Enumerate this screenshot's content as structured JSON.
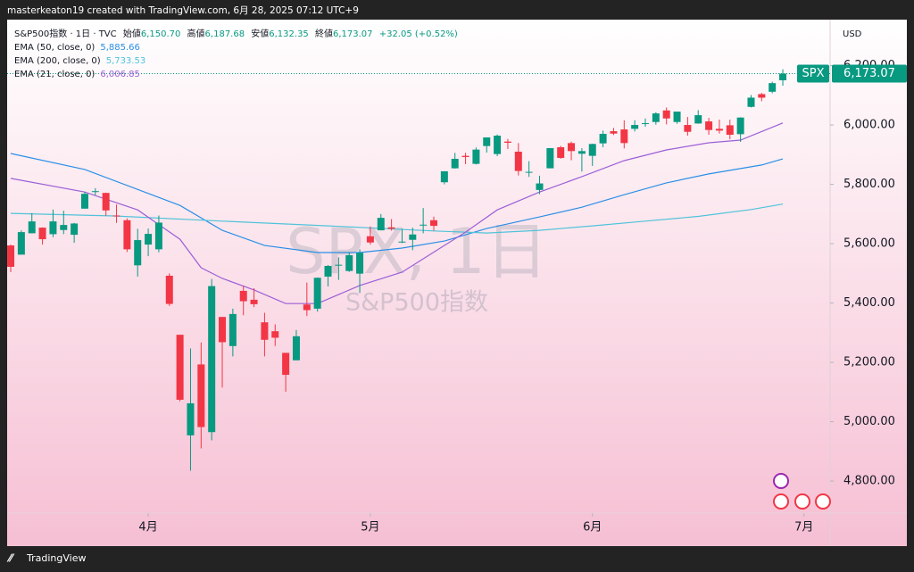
{
  "attribution": "masterkeaton19 created with TradingView.com, 6月 28, 2025 07:12 UTC+9",
  "brand": "TradingView",
  "chart_data": {
    "type": "candlestick",
    "symbol_line": "S&P500指数 · 1日 · TVC",
    "header": [
      {
        "label": "始値",
        "value": "6,150.70"
      },
      {
        "label": "高値",
        "value": "6,187.68"
      },
      {
        "label": "安値",
        "value": "6,132.35"
      },
      {
        "label": "終値",
        "value": "6,173.07"
      }
    ],
    "change": "+32.05 (+0.52%)",
    "watermark": "SPX, 1日",
    "watermark_sub": "S&P500指数",
    "currency": "USD",
    "symbol": "SPX",
    "last_price": {
      "value": 6173.07,
      "label": "6,173.07"
    },
    "up_color": "#089981",
    "down_color": "#f23645",
    "open": [
      5594,
      5563,
      5635,
      5654,
      5632,
      5646,
      5630,
      5718,
      5775,
      5771,
      5695,
      5679,
      5527,
      5597,
      5581,
      5492,
      5293,
      4954,
      5193,
      4965,
      5353,
      5255,
      5441,
      5411,
      5335,
      5305,
      5232,
      5207,
      5395,
      5381,
      5489,
      5529,
      5508,
      5499,
      5625,
      5645,
      5655,
      5606,
      5613,
      5663,
      5679,
      5807,
      5854,
      5896,
      5869,
      5929,
      5902,
      5944,
      5910,
      5841,
      5781,
      5854,
      5925,
      5939,
      5903,
      5896,
      5938,
      5979,
      5985,
      5987,
      6005,
      6010,
      6049,
      6010,
      6000,
      6005,
      6012,
      5987,
      5999,
      5969,
      6061,
      6104,
      6112,
      6150.7
    ],
    "high": [
      5597,
      5645,
      5703,
      5655,
      5715,
      5711,
      5670,
      5775,
      5787,
      5772,
      5732,
      5685,
      5650,
      5651,
      5695,
      5500,
      5293,
      5247,
      5267,
      5481,
      5353,
      5381,
      5459,
      5450,
      5367,
      5328,
      5232,
      5309,
      5469,
      5486,
      5528,
      5554,
      5571,
      5581,
      5658,
      5700,
      5683,
      5650,
      5654,
      5720,
      5691,
      5844,
      5906,
      5906,
      5924,
      5958,
      5968,
      5953,
      5939,
      5878,
      5829,
      5922,
      5930,
      5944,
      5922,
      5937,
      5981,
      5990,
      6016,
      6016,
      6022,
      6043,
      6059,
      6045,
      6027,
      6050,
      6024,
      6018,
      6018,
      6026,
      6101,
      6108,
      6146,
      6187.68
    ],
    "low": [
      5504,
      5563,
      5635,
      5597,
      5622,
      5632,
      5603,
      5718,
      5764,
      5694,
      5670,
      5572,
      5489,
      5558,
      5571,
      5390,
      5069,
      4835,
      4910,
      4937,
      5115,
      5220,
      5359,
      5386,
      5220,
      5255,
      5101,
      5207,
      5356,
      5371,
      5456,
      5478,
      5505,
      5434,
      5597,
      5645,
      5644,
      5602,
      5578,
      5635,
      5644,
      5800,
      5853,
      5868,
      5867,
      5907,
      5895,
      5919,
      5830,
      5825,
      5767,
      5854,
      5886,
      5881,
      5843,
      5862,
      5925,
      5966,
      5921,
      5978,
      5994,
      6001,
      6002,
      6004,
      5964,
      6004,
      5967,
      5971,
      5952,
      5943,
      6059,
      6080,
      6107,
      6132.35
    ],
    "close": [
      5522,
      5639,
      5675,
      5615,
      5675,
      5663,
      5668,
      5768,
      5777,
      5712,
      5693,
      5581,
      5612,
      5633,
      5671,
      5397,
      5074,
      5062,
      4982,
      5457,
      5268,
      5363,
      5406,
      5396,
      5276,
      5283,
      5158,
      5288,
      5376,
      5485,
      5525,
      5529,
      5561,
      5569,
      5604,
      5687,
      5650,
      5607,
      5631,
      5664,
      5660,
      5844,
      5886,
      5892,
      5917,
      5958,
      5964,
      5940,
      5845,
      5842,
      5803,
      5922,
      5889,
      5912,
      5912,
      5936,
      5970,
      5971,
      5939,
      6000,
      6006,
      6039,
      6022,
      6045,
      5977,
      6033,
      5983,
      5981,
      5967,
      6025,
      6092,
      6092,
      6141,
      6173.07
    ],
    "xlim": [
      -0.34,
      77.47
    ],
    "xticks": [
      {
        "value": 13,
        "label": "4月"
      },
      {
        "value": 34,
        "label": "5月"
      },
      {
        "value": 55,
        "label": "6月"
      },
      {
        "value": 75,
        "label": "7月"
      }
    ],
    "ylim": [
      4692,
      6355
    ],
    "yticks": [
      {
        "value": 4800,
        "label": "4,800.00"
      },
      {
        "value": 5000,
        "label": "5,000.00"
      },
      {
        "value": 5200,
        "label": "5,200.00"
      },
      {
        "value": 5400,
        "label": "5,400.00"
      },
      {
        "value": 5600,
        "label": "5,600.00"
      },
      {
        "value": 5800,
        "label": "5,800.00"
      },
      {
        "value": 6000,
        "label": "6,000.00"
      },
      {
        "value": 6200,
        "label": "6,200.00"
      }
    ],
    "series": [
      {
        "name": "EMA (50, close, 0)",
        "color": "#2b8fe6",
        "x": [
          0,
          7,
          16,
          20,
          24,
          29,
          33,
          37,
          41,
          45,
          50,
          54,
          58,
          62,
          66,
          71,
          73
        ],
        "values": [
          5904,
          5850,
          5729,
          5645,
          5594,
          5570,
          5570,
          5585,
          5609,
          5651,
          5690,
          5723,
          5765,
          5805,
          5835,
          5865,
          5885.66
        ],
        "value_labels": [
          null,
          null,
          null,
          null,
          null,
          null,
          null,
          null,
          null,
          null,
          null,
          null,
          null,
          null,
          null,
          null,
          "5,885.66"
        ]
      },
      {
        "name": "EMA (200, close, 0)",
        "color": "#4fc3d9",
        "x": [
          0,
          10,
          20,
          30,
          40,
          45,
          50,
          55,
          60,
          65,
          70,
          73
        ],
        "values": [
          5702,
          5693,
          5676,
          5660,
          5643,
          5636,
          5645,
          5660,
          5676,
          5692,
          5715,
          5733.53
        ],
        "value_labels": [
          null,
          null,
          null,
          null,
          null,
          null,
          null,
          null,
          null,
          null,
          null,
          "5,733.53"
        ]
      },
      {
        "name": "EMA (21, close, 0)",
        "color": "#9c5fd6",
        "x": [
          0,
          7,
          12,
          16,
          18,
          20,
          23,
          26,
          29,
          33,
          37,
          39,
          43,
          46,
          50,
          54,
          58,
          62,
          66,
          69,
          73
        ],
        "values": [
          5820,
          5774,
          5714,
          5615,
          5519,
          5483,
          5444,
          5398,
          5398,
          5459,
          5504,
          5549,
          5639,
          5714,
          5774,
          5826,
          5880,
          5916,
          5940,
          5949,
          6006.85
        ],
        "value_labels": [
          null,
          null,
          null,
          null,
          null,
          null,
          null,
          null,
          null,
          null,
          null,
          null,
          null,
          null,
          null,
          null,
          null,
          null,
          null,
          null,
          "6,006.85"
        ]
      }
    ]
  }
}
